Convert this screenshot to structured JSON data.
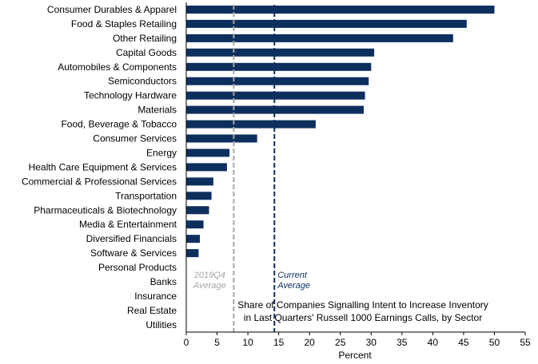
{
  "chart_data": {
    "type": "bar",
    "orientation": "horizontal",
    "categories": [
      "Consumer Durables & Apparel",
      "Food & Staples Retailing",
      "Other Retailing",
      "Capital Goods",
      "Automobiles & Components",
      "Semiconductors",
      "Technology Hardware",
      "Materials",
      "Food, Beverage & Tobacco",
      "Consumer Services",
      "Energy",
      "Health Care Equipment & Services",
      "Commercial  & Professional Services",
      "Transportation",
      "Pharmaceuticals & Biotechnology",
      "Media & Entertainment",
      "Diversified Financials",
      "Software & Services",
      "Personal Products",
      "Banks",
      "Insurance",
      "Real Estate",
      "Utilities"
    ],
    "values": [
      50,
      45.5,
      43.3,
      30.5,
      30,
      29.6,
      29,
      28.8,
      21,
      11.5,
      7,
      6.6,
      4.4,
      4.1,
      3.7,
      2.8,
      2.2,
      2,
      0,
      0,
      0,
      0,
      0
    ],
    "bar_color": "#0d2f5e",
    "xlabel": "Percent",
    "ylabel": "",
    "xlim": [
      0,
      55
    ],
    "xticks": [
      0,
      5,
      10,
      15,
      20,
      25,
      30,
      35,
      40,
      45,
      50,
      55
    ],
    "grid": false,
    "annotation_text": [
      "Share of Companies Signalling Intent to Increase Inventory",
      "in Last Quarters' Russell 1000 Earnings Calls, by Sector"
    ],
    "reference_lines": [
      {
        "value": 7.7,
        "label_lines": [
          "2019Q4",
          "Average"
        ],
        "color": "#a6a6a6"
      },
      {
        "value": 14.3,
        "label_lines": [
          "Current",
          "Average"
        ],
        "color": "#0d2f5e"
      }
    ]
  }
}
